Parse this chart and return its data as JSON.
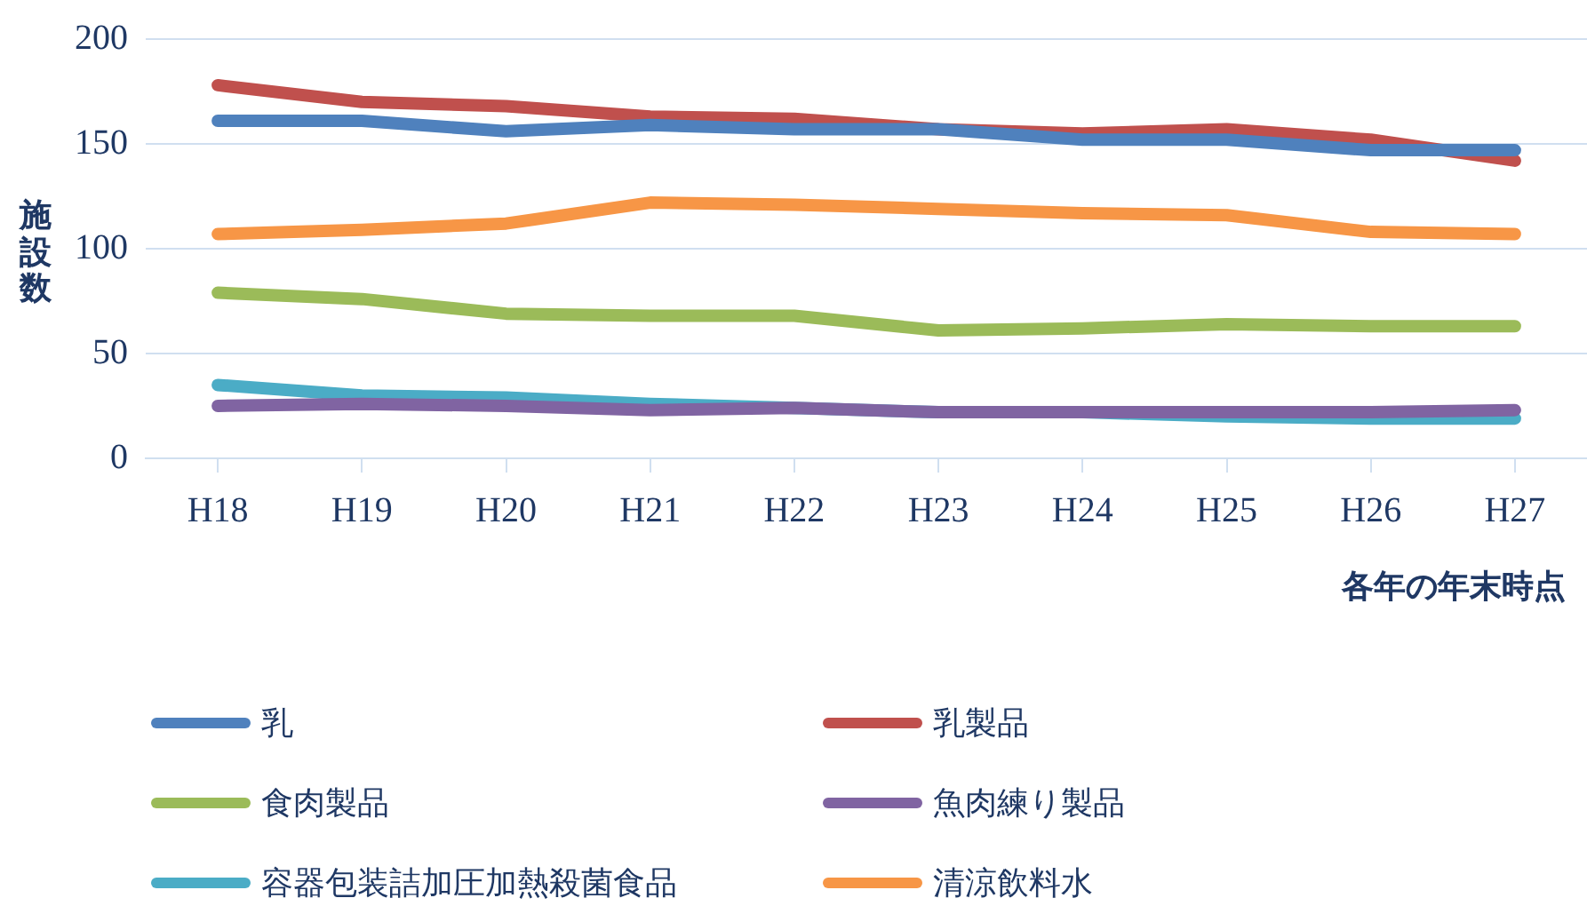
{
  "chart_data": {
    "type": "line",
    "ylabel": "施設数",
    "xlabel": "各年の年末時点",
    "categories": [
      "H18",
      "H19",
      "H20",
      "H21",
      "H22",
      "H23",
      "H24",
      "H25",
      "H26",
      "H27"
    ],
    "series": [
      {
        "name": "乳",
        "color": "#4f81bd",
        "values": [
          161,
          161,
          156,
          159,
          157,
          157,
          152,
          152,
          147,
          147
        ]
      },
      {
        "name": "乳製品",
        "color": "#c0504d",
        "values": [
          178,
          170,
          168,
          163,
          162,
          157,
          155,
          157,
          152,
          142
        ]
      },
      {
        "name": "食肉製品",
        "color": "#9bbb59",
        "values": [
          79,
          76,
          69,
          68,
          68,
          61,
          62,
          64,
          63,
          63
        ]
      },
      {
        "name": "魚肉練り製品",
        "color": "#8064a2",
        "values": [
          25,
          26,
          25,
          23,
          24,
          22,
          22,
          22,
          22,
          23
        ]
      },
      {
        "name": "容器包装詰加圧加熱殺菌食品",
        "color": "#4bacc6",
        "values": [
          35,
          30,
          29,
          26,
          24,
          22,
          22,
          20,
          19,
          19
        ]
      },
      {
        "name": "清涼飲料水",
        "color": "#f79646",
        "values": [
          107,
          109,
          112,
          122,
          121,
          119,
          117,
          116,
          108,
          107
        ]
      }
    ],
    "ylim": [
      0,
      200
    ],
    "yticks": [
      0,
      50,
      100,
      150,
      200
    ],
    "grid": "y",
    "legend": "bottom",
    "marker": "none",
    "line_style": "solid"
  }
}
